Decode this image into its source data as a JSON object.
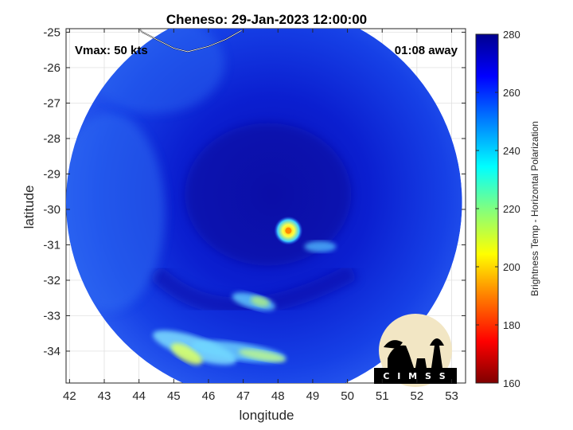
{
  "title": "Cheneso: 29-Jan-2023 12:00:00",
  "annotations": {
    "vmax": "Vmax: 50 kts",
    "time_away": "01:08 away"
  },
  "logo_text": "CIMSS",
  "chart_data": {
    "type": "heatmap",
    "title": "Cheneso: 29-Jan-2023 12:00:00",
    "xlabel": "longitude",
    "ylabel": "latitude",
    "xlim": [
      41.9,
      53.4
    ],
    "ylim": [
      -34.9,
      -24.9
    ],
    "xticks": [
      42,
      43,
      44,
      45,
      46,
      47,
      48,
      49,
      50,
      51,
      52,
      53
    ],
    "yticks": [
      -25,
      -26,
      -27,
      -28,
      -29,
      -30,
      -31,
      -32,
      -33,
      -34
    ],
    "grid": true,
    "colorbar": {
      "label": "Brightness Temp - Horizontal Polarization",
      "range": [
        160,
        280
      ],
      "ticks": [
        280,
        260,
        240,
        220,
        200,
        180,
        160
      ],
      "colormap": [
        "#7f0000",
        "#ff0000",
        "#ff8000",
        "#ffff00",
        "#80ff80",
        "#00ffff",
        "#0080ff",
        "#0000ff",
        "#00008f"
      ]
    },
    "swath": {
      "center_lon": 47.6,
      "center_lat": -29.8,
      "radius_deg": 5.7
    },
    "features": [
      {
        "name": "eye-warm-spot",
        "lon": 48.3,
        "lat": -30.6,
        "value": 195
      },
      {
        "name": "southern-rainband",
        "lon": 45.6,
        "lat": -33.9,
        "value": 215
      },
      {
        "name": "western-band",
        "lon": 47.3,
        "lat": -32.6,
        "value": 230
      }
    ]
  }
}
